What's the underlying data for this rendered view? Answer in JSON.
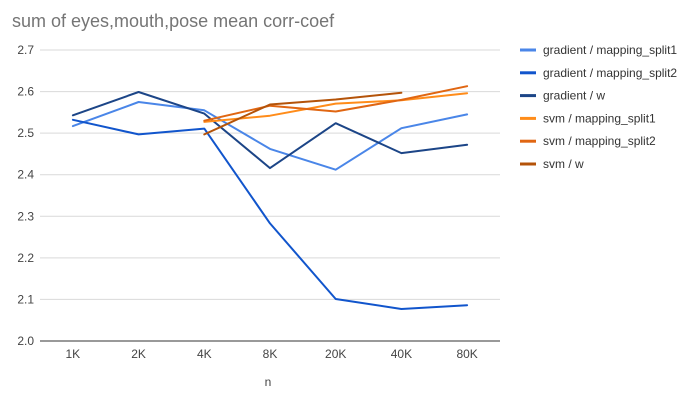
{
  "chart_data": {
    "type": "line",
    "title": "sum of eyes,mouth,pose mean corr-coef",
    "xlabel": "n",
    "ylabel": "",
    "categories": [
      "1K",
      "2K",
      "4K",
      "8K",
      "20K",
      "40K",
      "80K"
    ],
    "ylim": [
      2.0,
      2.7
    ],
    "yticks": [
      "2.0",
      "2.1",
      "2.2",
      "2.3",
      "2.4",
      "2.5",
      "2.6",
      "2.7"
    ],
    "grid": true,
    "legend": "right",
    "series": [
      {
        "name": "gradient / mapping_split1",
        "color": "#4a86e8",
        "values": [
          2.517,
          2.575,
          2.555,
          2.462,
          2.412,
          2.512,
          2.545
        ]
      },
      {
        "name": "gradient / mapping_split2",
        "color": "#1155cc",
        "values": [
          2.532,
          2.497,
          2.511,
          2.283,
          2.101,
          2.077,
          2.086
        ]
      },
      {
        "name": "gradient / w",
        "color": "#1c4587",
        "values": [
          2.543,
          2.599,
          2.547,
          2.416,
          2.524,
          2.452,
          2.472
        ]
      },
      {
        "name": "svm / mapping_split1",
        "color": "#ff8c1a",
        "values": [
          null,
          null,
          2.527,
          2.542,
          2.571,
          2.579,
          2.596
        ]
      },
      {
        "name": "svm / mapping_split2",
        "color": "#e06612",
        "values": [
          null,
          null,
          2.53,
          2.566,
          2.552,
          2.58,
          2.613
        ]
      },
      {
        "name": "svm / w",
        "color": "#b45309",
        "values": [
          null,
          null,
          2.497,
          2.569,
          2.581,
          2.597,
          null
        ]
      }
    ]
  }
}
